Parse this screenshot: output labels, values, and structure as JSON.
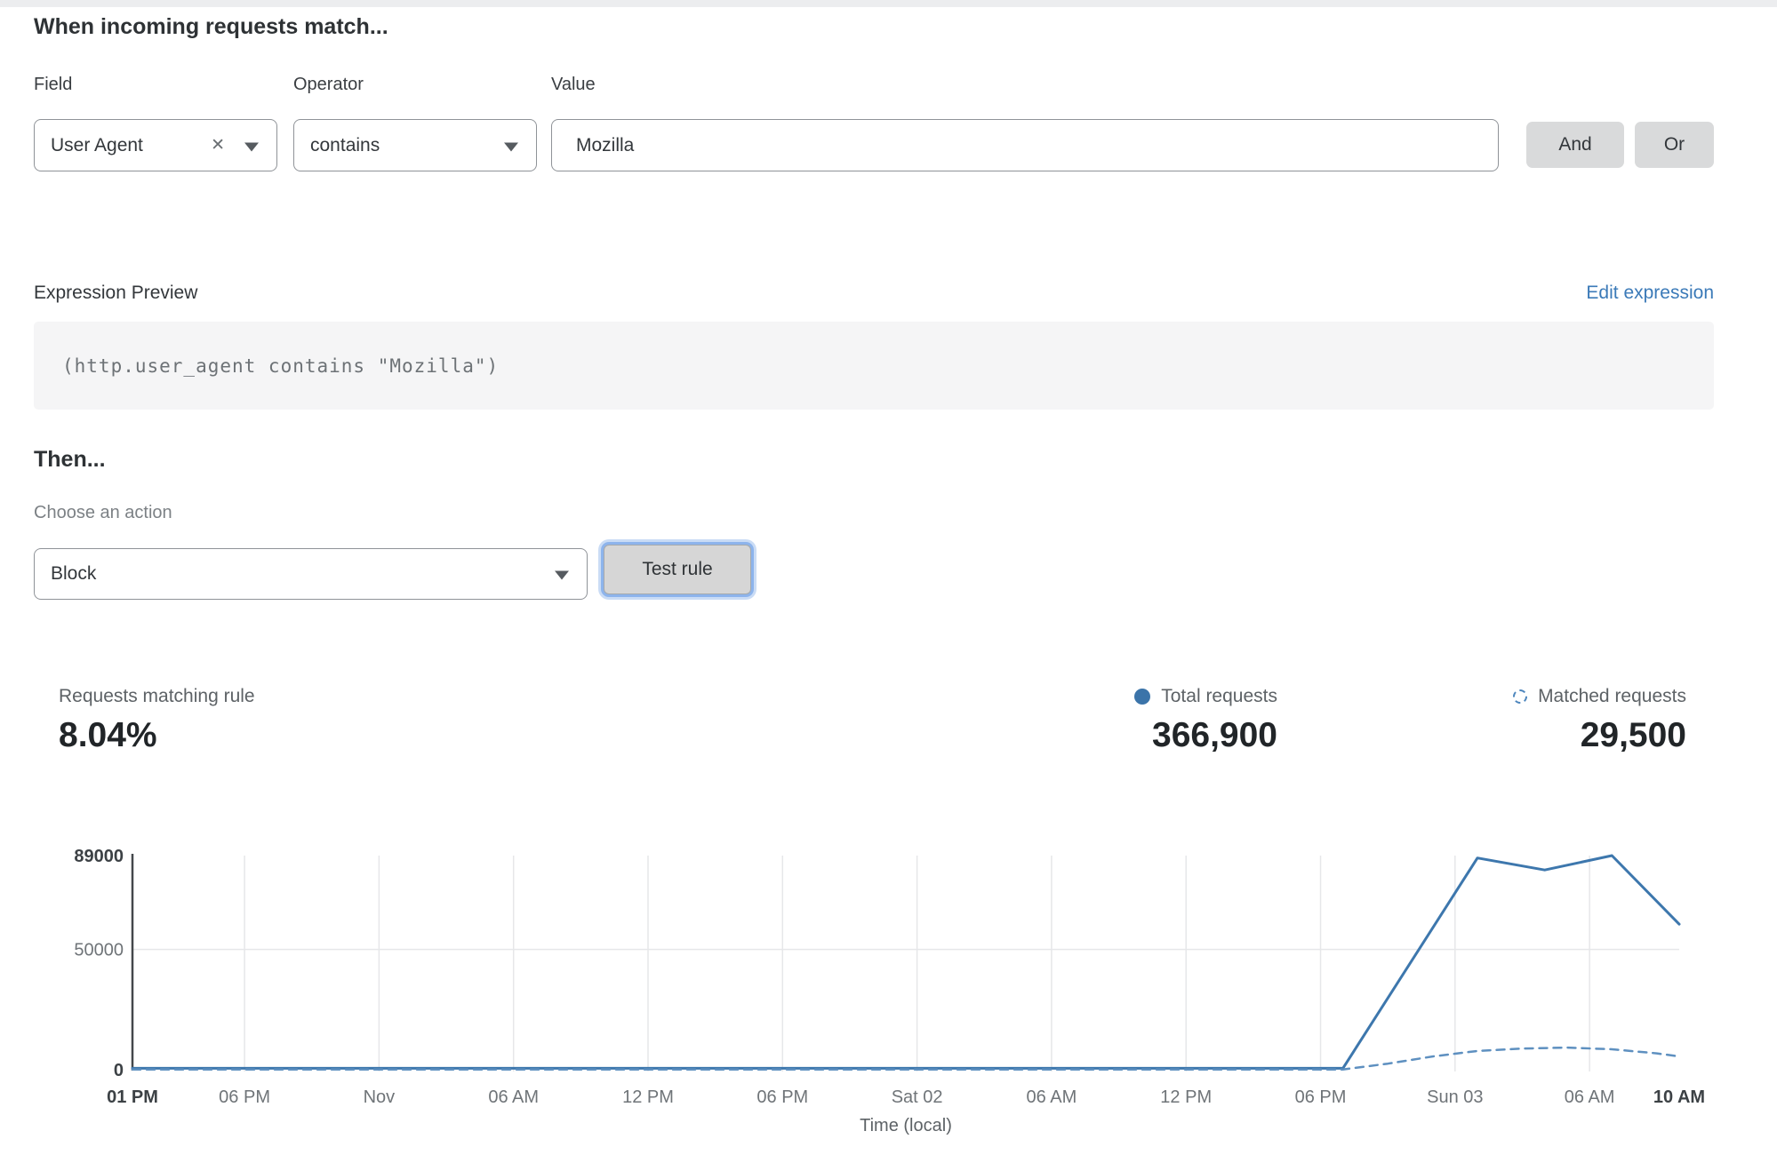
{
  "rule_builder": {
    "heading": "When incoming requests match...",
    "field": {
      "label": "Field",
      "value": "User Agent"
    },
    "operator": {
      "label": "Operator",
      "value": "contains"
    },
    "value_field": {
      "label": "Value",
      "value": "Mozilla"
    },
    "and_label": "And",
    "or_label": "Or"
  },
  "expression_preview": {
    "label": "Expression Preview",
    "edit_link": "Edit expression",
    "code": "(http.user_agent contains \"Mozilla\")"
  },
  "action_section": {
    "heading": "Then...",
    "choose_label": "Choose an action",
    "selected_action": "Block",
    "test_button_label": "Test rule"
  },
  "stats": {
    "matching": {
      "label": "Requests matching rule",
      "value": "8.04%"
    },
    "total": {
      "label": "Total requests",
      "value": "366,900",
      "color": "#3b74a9"
    },
    "matched": {
      "label": "Matched requests",
      "value": "29,500",
      "color": "#4d86bd"
    }
  },
  "chart_data": {
    "type": "line",
    "title": "",
    "xlabel": "Time (local)",
    "ylabel": "",
    "ylim": [
      0,
      89000
    ],
    "x_hours_range": [
      0,
      69
    ],
    "grid": true,
    "axis_color": "#44484b",
    "gridline_color": "#e6e7e9",
    "tick_color": "#6f7478",
    "tick_bold_color": "#3c4145",
    "yticks": [
      {
        "v": 0,
        "label": "0",
        "bold": true
      },
      {
        "v": 50000,
        "label": "50000",
        "bold": false
      },
      {
        "v": 89000,
        "label": "89000",
        "bold": true
      }
    ],
    "xticks": [
      {
        "h": 0,
        "label": "01 PM",
        "bold": true,
        "gridline": false
      },
      {
        "h": 5,
        "label": "06 PM",
        "bold": false,
        "gridline": true
      },
      {
        "h": 11,
        "label": "Nov",
        "bold": false,
        "gridline": true
      },
      {
        "h": 17,
        "label": "06 AM",
        "bold": false,
        "gridline": true
      },
      {
        "h": 23,
        "label": "12 PM",
        "bold": false,
        "gridline": true
      },
      {
        "h": 29,
        "label": "06 PM",
        "bold": false,
        "gridline": true
      },
      {
        "h": 35,
        "label": "Sat 02",
        "bold": false,
        "gridline": true
      },
      {
        "h": 41,
        "label": "06 AM",
        "bold": false,
        "gridline": true
      },
      {
        "h": 47,
        "label": "12 PM",
        "bold": false,
        "gridline": true
      },
      {
        "h": 53,
        "label": "06 PM",
        "bold": false,
        "gridline": true
      },
      {
        "h": 59,
        "label": "Sun 03",
        "bold": false,
        "gridline": true
      },
      {
        "h": 65,
        "label": "06 AM",
        "bold": false,
        "gridline": true
      },
      {
        "h": 69,
        "label": "10 AM",
        "bold": true,
        "gridline": false
      }
    ],
    "h_gridline_values": [
      50000
    ],
    "series": [
      {
        "name": "Total requests",
        "style": "solid",
        "color": "#3d77ad",
        "stroke_width": 3,
        "points": [
          [
            0,
            600
          ],
          [
            54,
            600
          ],
          [
            60,
            88000
          ],
          [
            63,
            83000
          ],
          [
            66,
            89000
          ],
          [
            69,
            60500
          ]
        ]
      },
      {
        "name": "Matched requests",
        "style": "dashed",
        "color": "#5e90c0",
        "stroke_width": 2.5,
        "points": [
          [
            0,
            100
          ],
          [
            54,
            100
          ],
          [
            56,
            2500
          ],
          [
            58,
            5500
          ],
          [
            60,
            7800
          ],
          [
            62,
            8800
          ],
          [
            64,
            9200
          ],
          [
            66,
            8500
          ],
          [
            68,
            6800
          ],
          [
            69,
            5500
          ]
        ]
      }
    ]
  }
}
